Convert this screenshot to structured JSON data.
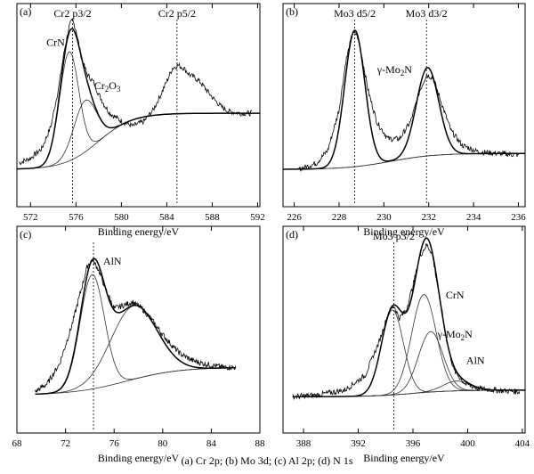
{
  "caption": "(a) Cr 2p; (b) Mo 3d; (c) Al 2p; (d) N 1s",
  "chart_data": [
    {
      "panel": "(a)",
      "type": "line",
      "xlabel": "Binding energy/eV",
      "xlim": [
        570.8,
        592.2
      ],
      "ylim": [
        0,
        1.0
      ],
      "xticks": [
        572,
        576,
        580,
        584,
        588,
        592
      ],
      "markers": [
        {
          "x": 575.7,
          "label": "Cr2 p3/2"
        },
        {
          "x": 584.9,
          "label": "Cr2 p5/2"
        }
      ],
      "annotations": [
        {
          "text": "CrN",
          "x": 573.4,
          "y": 0.8
        },
        {
          "text": "Cr",
          "sub": "2",
          "text2": "O",
          "sub2": "3",
          "x": 577.6,
          "y": 0.53
        }
      ],
      "components": [
        {
          "id": "crn",
          "center": 575.4,
          "height": 0.68,
          "width": 0.85
        },
        {
          "id": "cr2o3",
          "center": 576.8,
          "height": 0.32,
          "width": 1.0
        }
      ],
      "background": {
        "start": 570.8,
        "end": 592.2,
        "low": 0.03,
        "high": 0.38,
        "mid": 578.0,
        "steep": 1.5
      },
      "measured": [
        {
          "x": 571.0,
          "y": 0.07
        },
        {
          "x": 572.0,
          "y": 0.1
        },
        {
          "x": 573.0,
          "y": 0.16
        },
        {
          "x": 573.8,
          "y": 0.3
        },
        {
          "x": 574.5,
          "y": 0.55
        },
        {
          "x": 575.0,
          "y": 0.78
        },
        {
          "x": 575.4,
          "y": 0.92
        },
        {
          "x": 575.7,
          "y": 0.96
        },
        {
          "x": 576.0,
          "y": 0.9
        },
        {
          "x": 576.5,
          "y": 0.72
        },
        {
          "x": 577.0,
          "y": 0.62
        },
        {
          "x": 577.5,
          "y": 0.58
        },
        {
          "x": 578.0,
          "y": 0.5
        },
        {
          "x": 578.5,
          "y": 0.43
        },
        {
          "x": 579.0,
          "y": 0.38
        },
        {
          "x": 580.0,
          "y": 0.33
        },
        {
          "x": 581.0,
          "y": 0.3
        },
        {
          "x": 582.0,
          "y": 0.33
        },
        {
          "x": 582.8,
          "y": 0.4
        },
        {
          "x": 583.5,
          "y": 0.5
        },
        {
          "x": 584.0,
          "y": 0.58
        },
        {
          "x": 584.5,
          "y": 0.66
        },
        {
          "x": 585.0,
          "y": 0.68
        },
        {
          "x": 585.5,
          "y": 0.66
        },
        {
          "x": 586.0,
          "y": 0.62
        },
        {
          "x": 586.5,
          "y": 0.6
        },
        {
          "x": 587.0,
          "y": 0.57
        },
        {
          "x": 588.0,
          "y": 0.48
        },
        {
          "x": 588.8,
          "y": 0.42
        },
        {
          "x": 589.5,
          "y": 0.39
        },
        {
          "x": 590.5,
          "y": 0.38
        },
        {
          "x": 591.5,
          "y": 0.38
        }
      ]
    },
    {
      "panel": "(b)",
      "type": "line",
      "xlabel": "Binding energy/eV",
      "xlim": [
        225.5,
        236.3
      ],
      "ylim": [
        0,
        1.0
      ],
      "xticks": [
        226,
        228,
        230,
        232,
        234,
        236
      ],
      "markers": [
        {
          "x": 228.7,
          "label": "Mo3 d5/2"
        },
        {
          "x": 231.9,
          "label": "Mo3 d3/2"
        }
      ],
      "annotations": [
        {
          "text": "γ-Mo",
          "sub": "2",
          "text2": "N",
          "x": 229.7,
          "y": 0.63
        }
      ],
      "components": [
        {
          "id": "d52",
          "center": 228.7,
          "height": 0.85,
          "width": 0.45
        },
        {
          "id": "d32",
          "center": 231.95,
          "height": 0.55,
          "width": 0.5
        }
      ],
      "background": {
        "start": 225.5,
        "end": 236.3,
        "low": 0.03,
        "high": 0.13,
        "mid": 230.3,
        "steep": 1.0
      },
      "measured": [
        {
          "x": 226.2,
          "y": 0.03
        },
        {
          "x": 227.0,
          "y": 0.07
        },
        {
          "x": 227.5,
          "y": 0.15
        },
        {
          "x": 228.0,
          "y": 0.4
        },
        {
          "x": 228.3,
          "y": 0.7
        },
        {
          "x": 228.6,
          "y": 0.88
        },
        {
          "x": 228.8,
          "y": 0.87
        },
        {
          "x": 229.0,
          "y": 0.75
        },
        {
          "x": 229.3,
          "y": 0.52
        },
        {
          "x": 229.7,
          "y": 0.32
        },
        {
          "x": 230.2,
          "y": 0.22
        },
        {
          "x": 230.7,
          "y": 0.22
        },
        {
          "x": 231.2,
          "y": 0.33
        },
        {
          "x": 231.6,
          "y": 0.52
        },
        {
          "x": 231.9,
          "y": 0.62
        },
        {
          "x": 232.2,
          "y": 0.6
        },
        {
          "x": 232.6,
          "y": 0.43
        },
        {
          "x": 233.0,
          "y": 0.27
        },
        {
          "x": 233.5,
          "y": 0.18
        },
        {
          "x": 234.2,
          "y": 0.14
        },
        {
          "x": 235.0,
          "y": 0.13
        },
        {
          "x": 236.0,
          "y": 0.12
        }
      ]
    },
    {
      "panel": "(c)",
      "type": "line",
      "xlabel": "Binding energy/eV",
      "xlim": [
        68,
        88
      ],
      "ylim": [
        0,
        1.0
      ],
      "xticks": [
        68,
        72,
        76,
        80,
        84,
        88
      ],
      "markers": [
        {
          "x": 74.3,
          "label": ""
        }
      ],
      "annotations": [
        {
          "text": "AlN",
          "x": 75.1,
          "y": 0.83
        }
      ],
      "components": [
        {
          "id": "aln",
          "center": 74.2,
          "height": 0.7,
          "width": 1.0
        },
        {
          "id": "second",
          "center": 77.6,
          "height": 0.45,
          "width": 1.9
        }
      ],
      "background": {
        "start": 69.5,
        "end": 86.0,
        "low": 0.03,
        "high": 0.2,
        "mid": 77.0,
        "steep": 2.2
      },
      "measured": [
        {
          "x": 69.5,
          "y": 0.05
        },
        {
          "x": 70.5,
          "y": 0.1
        },
        {
          "x": 71.5,
          "y": 0.22
        },
        {
          "x": 72.5,
          "y": 0.45
        },
        {
          "x": 73.2,
          "y": 0.65
        },
        {
          "x": 73.8,
          "y": 0.82
        },
        {
          "x": 74.2,
          "y": 0.86
        },
        {
          "x": 74.7,
          "y": 0.8
        },
        {
          "x": 75.3,
          "y": 0.68
        },
        {
          "x": 76.0,
          "y": 0.56
        },
        {
          "x": 76.8,
          "y": 0.58
        },
        {
          "x": 77.5,
          "y": 0.6
        },
        {
          "x": 78.3,
          "y": 0.56
        },
        {
          "x": 79.0,
          "y": 0.5
        },
        {
          "x": 80.0,
          "y": 0.4
        },
        {
          "x": 80.8,
          "y": 0.33
        },
        {
          "x": 81.5,
          "y": 0.28
        },
        {
          "x": 82.5,
          "y": 0.24
        },
        {
          "x": 83.5,
          "y": 0.22
        },
        {
          "x": 85.0,
          "y": 0.2
        },
        {
          "x": 86.0,
          "y": 0.2
        }
      ]
    },
    {
      "panel": "(d)",
      "type": "line",
      "xlabel": "Binding energy/eV",
      "xlim": [
        386.5,
        404.2
      ],
      "ylim": [
        0,
        1.0
      ],
      "xticks": [
        388,
        392,
        396,
        400,
        404
      ],
      "markers": [
        {
          "x": 394.6,
          "label": "Mo3 p3/2"
        }
      ],
      "annotations": [
        {
          "text": "CrN",
          "x": 398.4,
          "y": 0.62
        },
        {
          "text": "γ-Mo",
          "sub": "2",
          "text2": "N",
          "x": 397.8,
          "y": 0.38
        },
        {
          "text": "AlN",
          "x": 399.9,
          "y": 0.22
        }
      ],
      "components": [
        {
          "id": "mo3p",
          "center": 394.5,
          "height": 0.52,
          "width": 0.8
        },
        {
          "id": "crn",
          "center": 396.8,
          "height": 0.6,
          "width": 0.9
        },
        {
          "id": "mo2n",
          "center": 397.3,
          "height": 0.37,
          "width": 0.9
        },
        {
          "id": "aln",
          "center": 399.2,
          "height": 0.06,
          "width": 1.0
        }
      ],
      "background": {
        "start": 387.2,
        "end": 404.2,
        "low": 0.02,
        "high": 0.06,
        "mid": 396.0,
        "steep": 1.5
      },
      "measured": [
        {
          "x": 387.2,
          "y": 0.02
        },
        {
          "x": 389.0,
          "y": 0.03
        },
        {
          "x": 391.0,
          "y": 0.06
        },
        {
          "x": 392.5,
          "y": 0.15
        },
        {
          "x": 393.5,
          "y": 0.35
        },
        {
          "x": 394.2,
          "y": 0.53
        },
        {
          "x": 394.6,
          "y": 0.58
        },
        {
          "x": 395.0,
          "y": 0.5
        },
        {
          "x": 395.5,
          "y": 0.55
        },
        {
          "x": 396.0,
          "y": 0.7
        },
        {
          "x": 396.5,
          "y": 0.88
        },
        {
          "x": 397.0,
          "y": 0.95
        },
        {
          "x": 397.4,
          "y": 0.9
        },
        {
          "x": 397.9,
          "y": 0.65
        },
        {
          "x": 398.5,
          "y": 0.35
        },
        {
          "x": 399.0,
          "y": 0.18
        },
        {
          "x": 399.8,
          "y": 0.1
        },
        {
          "x": 400.8,
          "y": 0.07
        },
        {
          "x": 402.0,
          "y": 0.06
        },
        {
          "x": 403.8,
          "y": 0.05
        }
      ]
    }
  ]
}
